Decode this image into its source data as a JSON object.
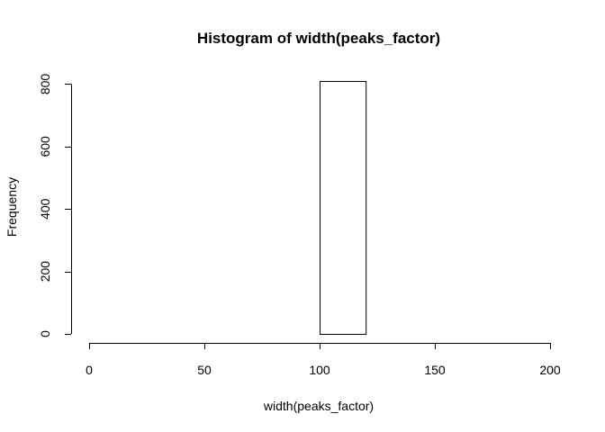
{
  "chart_data": {
    "type": "bar",
    "title": "Histogram of width(peaks_factor)",
    "xlabel": "width(peaks_factor)",
    "ylabel": "Frequency",
    "bins": [
      {
        "x_start": 100,
        "x_end": 120,
        "count": 810
      }
    ],
    "xlim": [
      0,
      200
    ],
    "ylim": [
      0,
      810
    ],
    "x_ticks": [
      0,
      50,
      100,
      150,
      200
    ],
    "y_ticks": [
      0,
      200,
      400,
      600,
      800
    ],
    "grid": false,
    "legend": "none"
  }
}
